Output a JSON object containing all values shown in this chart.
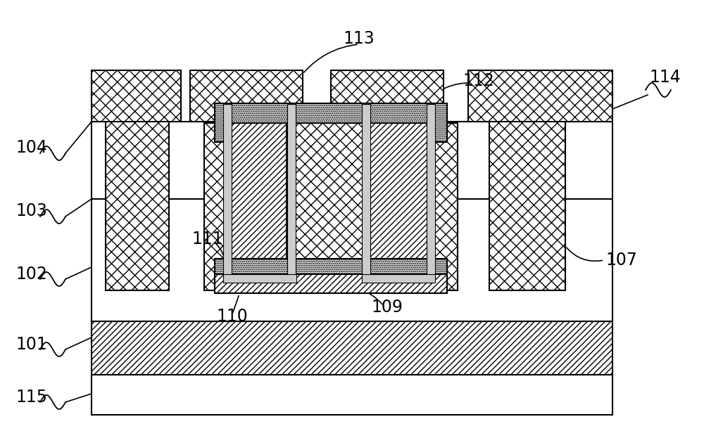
{
  "fig_width": 10.0,
  "fig_height": 6.23,
  "bg_color": "#ffffff",
  "lw": 1.5,
  "labels": [
    "101",
    "102",
    "103",
    "104",
    "107",
    "109",
    "110",
    "111",
    "112",
    "113",
    "114",
    "115"
  ]
}
